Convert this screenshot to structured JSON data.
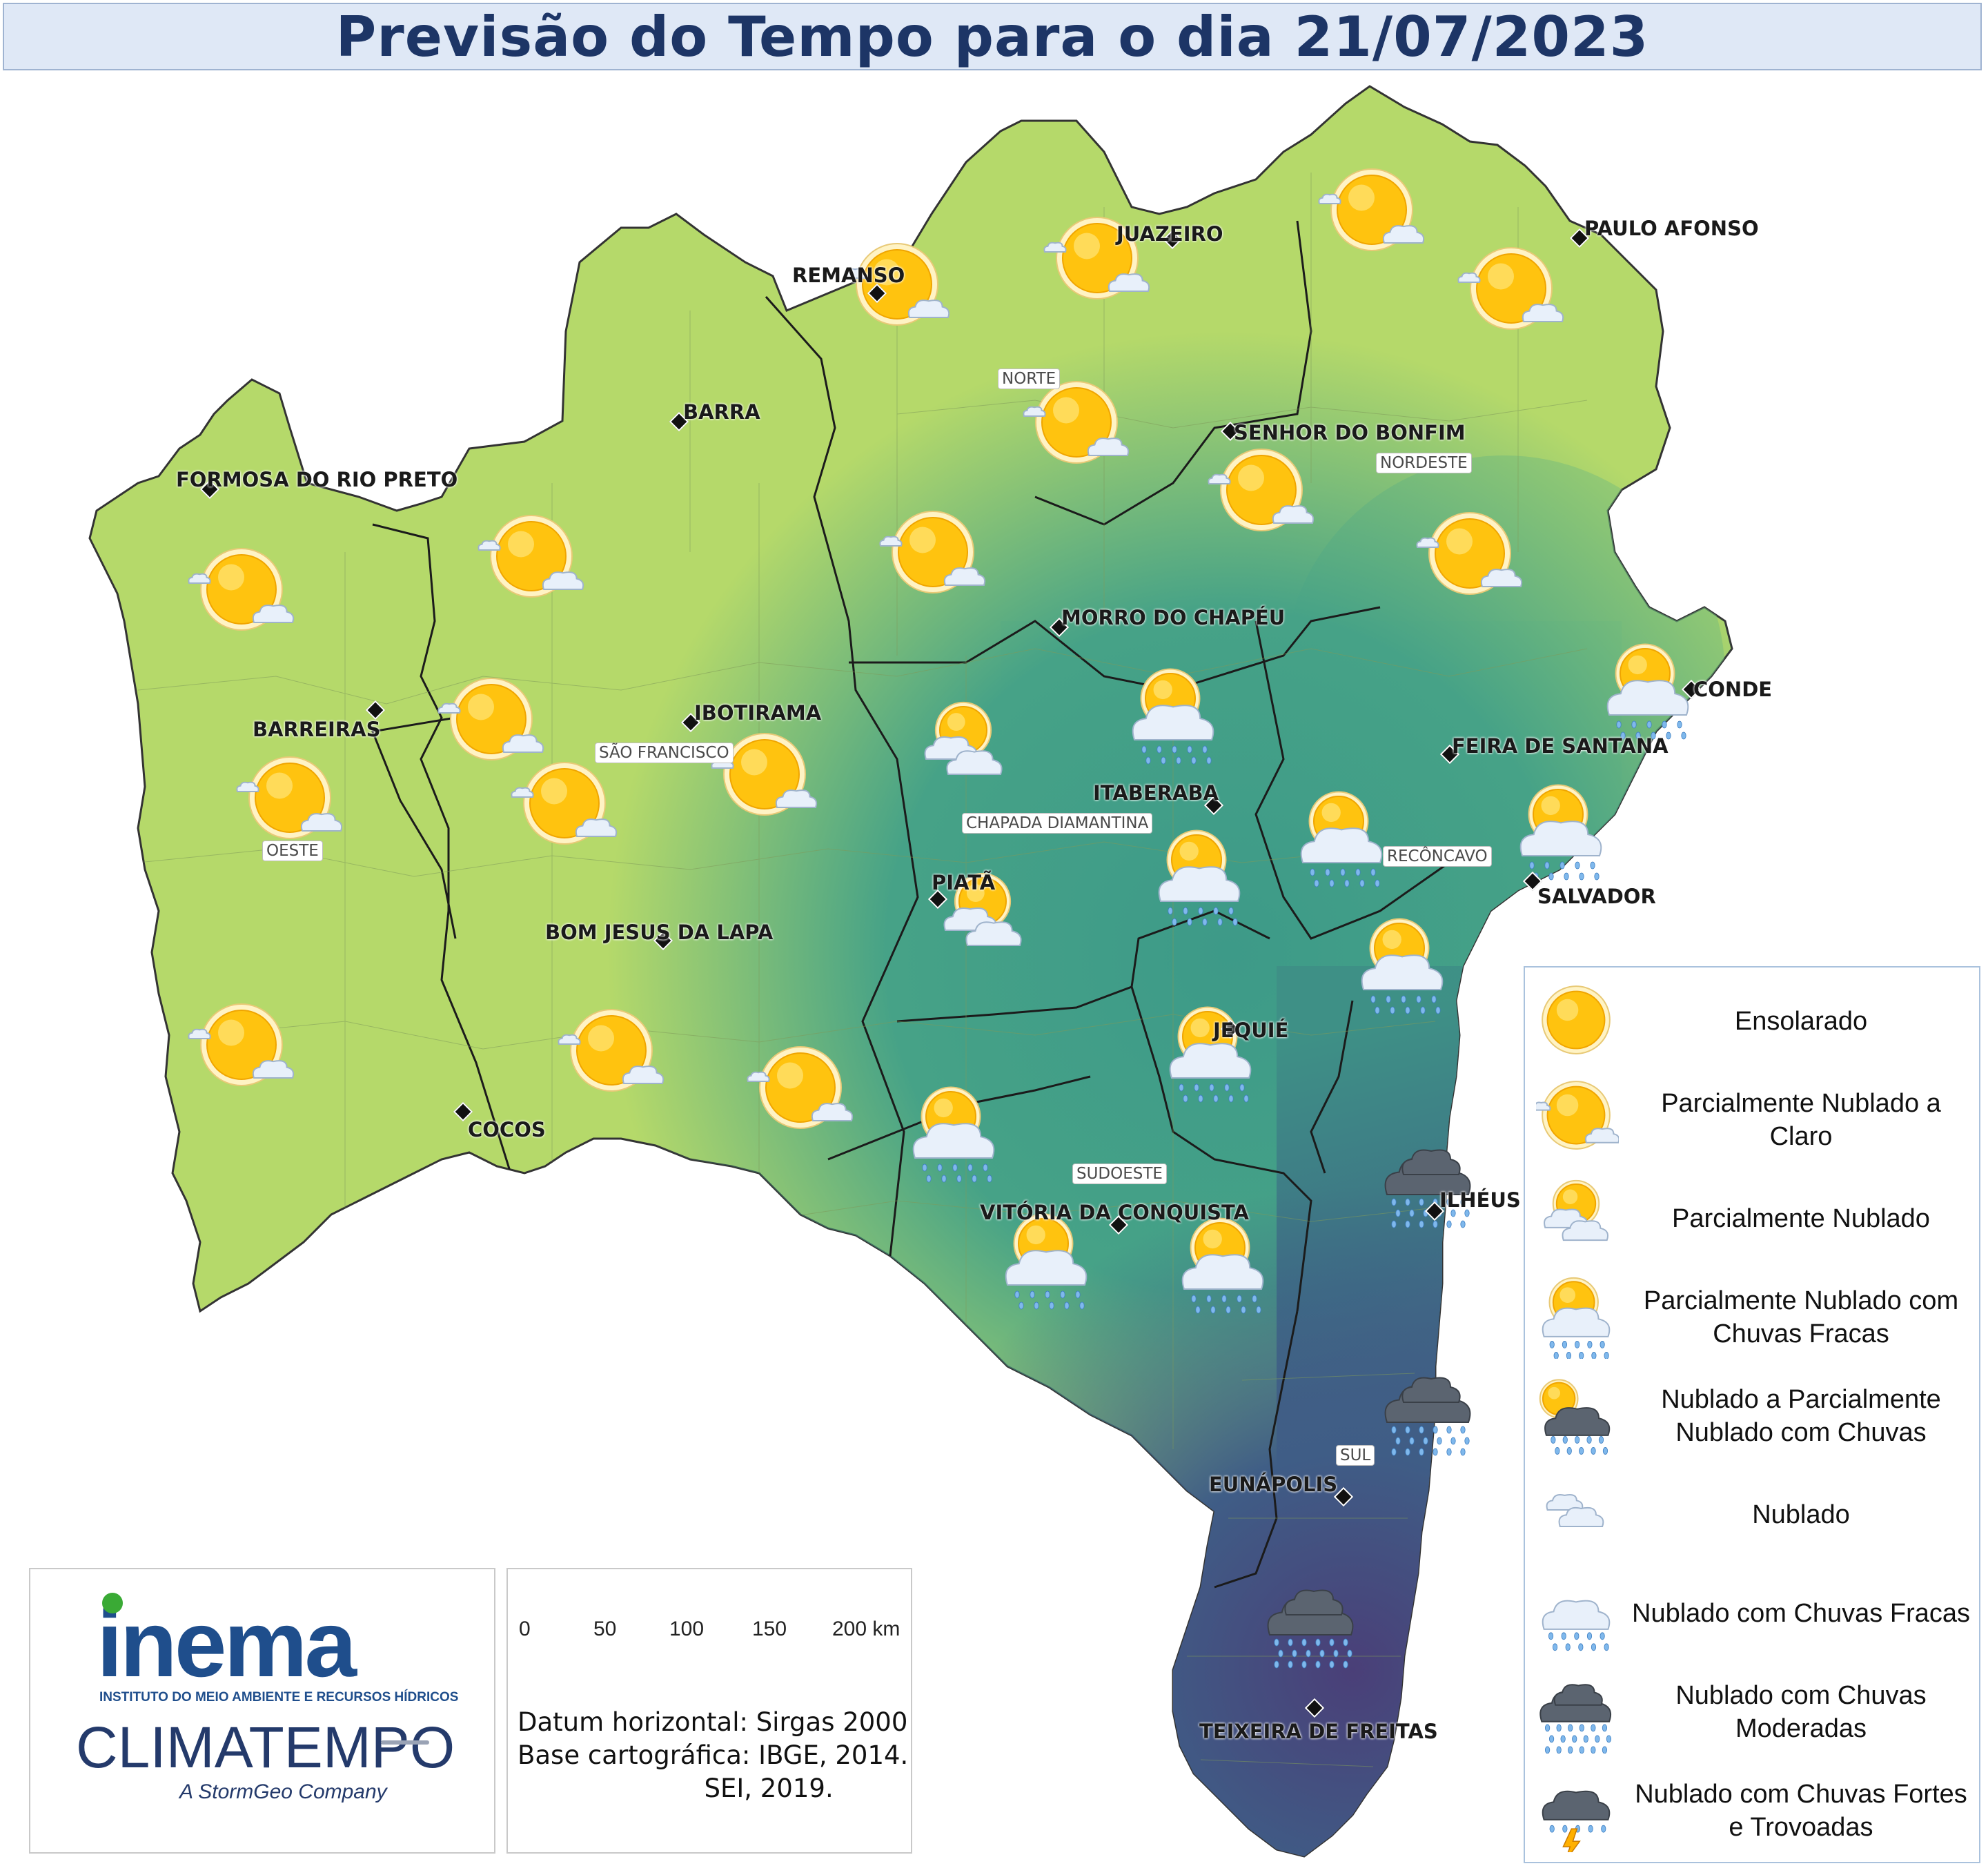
{
  "title": "Previsão do Tempo para o dia 21/07/2023",
  "cities": [
    {
      "id": "formosa",
      "name": "FORMOSA DO RIO PRETO"
    },
    {
      "id": "barreiras",
      "name": "BARREIRAS"
    },
    {
      "id": "cocos",
      "name": "COCOS"
    },
    {
      "id": "barra",
      "name": "BARRA"
    },
    {
      "id": "ibotirama",
      "name": "IBOTIRAMA"
    },
    {
      "id": "bomjesus",
      "name": "BOM JESUS DA LAPA"
    },
    {
      "id": "remanso",
      "name": "REMANSO"
    },
    {
      "id": "juazeiro",
      "name": "JUAZEIRO"
    },
    {
      "id": "pauloafonso",
      "name": "PAULO AFONSO"
    },
    {
      "id": "senhor",
      "name": "SENHOR DO BONFIM"
    },
    {
      "id": "morro",
      "name": "MORRO DO CHAPÉU"
    },
    {
      "id": "itaberaba",
      "name": "ITABERABA"
    },
    {
      "id": "piata",
      "name": "PIATÃ"
    },
    {
      "id": "feira",
      "name": "FEIRA DE SANTANA"
    },
    {
      "id": "conde",
      "name": "CONDE"
    },
    {
      "id": "salvador",
      "name": "SALVADOR"
    },
    {
      "id": "jequie",
      "name": "JEQUIÉ"
    },
    {
      "id": "ilheus",
      "name": "ILHÉUS"
    },
    {
      "id": "vitoria",
      "name": "VITÓRIA DA CONQUISTA"
    },
    {
      "id": "eunapolis",
      "name": "EUNÁPOLIS"
    },
    {
      "id": "teixeira",
      "name": "TEIXEIRA DE FREITAS"
    }
  ],
  "regions": [
    "OESTE",
    "SÃO FRANCISCO",
    "NORTE",
    "NORDESTE",
    "CHAPADA DIAMANTINA",
    "RECÔNCAVO",
    "SUDOESTE",
    "SUL"
  ],
  "legend": [
    {
      "icon": "sun-icon",
      "label": "Ensolarado"
    },
    {
      "icon": "sun-few-clouds-icon",
      "label": "Parcialmente Nublado a Claro"
    },
    {
      "icon": "partly-cloudy-icon",
      "label": "Parcialmente Nublado"
    },
    {
      "icon": "partly-cloudy-light-rain-icon",
      "label": "Parcialmente Nublado com Chuvas Fracas"
    },
    {
      "icon": "cloudy-partly-rain-icon",
      "label": "Nublado a Parcialmente Nublado com Chuvas"
    },
    {
      "icon": "cloud-icon",
      "label": "Nublado"
    },
    {
      "icon": "cloud-light-rain-icon",
      "label": "Nublado com Chuvas Fracas"
    },
    {
      "icon": "cloud-moderate-rain-icon",
      "label": "Nublado com Chuvas Moderadas"
    },
    {
      "icon": "thunderstorm-icon",
      "label": "Nublado com Chuvas Fortes e Trovoadas"
    }
  ],
  "forecast_icons": [
    {
      "type": "sun-few-clouds-icon"
    },
    {
      "type": "sun-few-clouds-icon"
    },
    {
      "type": "sun-few-clouds-icon"
    },
    {
      "type": "sun-few-clouds-icon"
    },
    {
      "type": "sun-few-clouds-icon"
    },
    {
      "type": "sun-few-clouds-icon"
    },
    {
      "type": "sun-few-clouds-icon"
    },
    {
      "type": "sun-few-clouds-icon"
    },
    {
      "type": "sun-few-clouds-icon"
    },
    {
      "type": "sun-few-clouds-icon"
    },
    {
      "type": "sun-few-clouds-icon"
    },
    {
      "type": "sun-few-clouds-icon"
    },
    {
      "type": "sun-few-clouds-icon"
    },
    {
      "type": "sun-few-clouds-icon"
    },
    {
      "type": "sun-few-clouds-icon"
    },
    {
      "type": "sun-few-clouds-icon"
    },
    {
      "type": "sun-few-clouds-icon"
    },
    {
      "type": "partly-cloudy-icon"
    },
    {
      "type": "partly-cloudy-icon"
    },
    {
      "type": "partly-cloudy-light-rain-icon"
    },
    {
      "type": "partly-cloudy-light-rain-icon"
    },
    {
      "type": "partly-cloudy-light-rain-icon"
    },
    {
      "type": "partly-cloudy-light-rain-icon"
    },
    {
      "type": "partly-cloudy-light-rain-icon"
    },
    {
      "type": "partly-cloudy-light-rain-icon"
    },
    {
      "type": "partly-cloudy-light-rain-icon"
    },
    {
      "type": "partly-cloudy-light-rain-icon"
    },
    {
      "type": "partly-cloudy-light-rain-icon"
    },
    {
      "type": "partly-cloudy-light-rain-icon"
    },
    {
      "type": "cloud-moderate-rain-icon"
    },
    {
      "type": "cloud-moderate-rain-icon"
    },
    {
      "type": "cloud-moderate-rain-icon"
    }
  ],
  "logos": {
    "inema_name": "inema",
    "inema_subtitle": "INSTITUTO DO MEIO AMBIENTE E RECURSOS HÍDRICOS",
    "climatempo_name": "CLIMATEMPO",
    "climatempo_tagline": "A StormGeo Company"
  },
  "scale": {
    "ticks": [
      "0",
      "50",
      "100",
      "150",
      "200 km"
    ]
  },
  "datum_text": "Datum horizontal: Sirgas 2000\nBase cartográfica: IBGE, 2014.\n                       SEI, 2019.",
  "colors": {
    "dry": "#b8dc6b",
    "humid": "#3e9b88",
    "wet": "#4a4f7e",
    "title": "#1d3566",
    "title_bg": "#dfe8f6"
  }
}
